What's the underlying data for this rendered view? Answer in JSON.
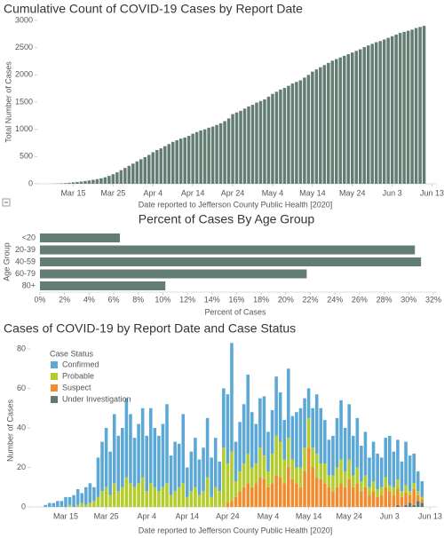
{
  "chart_data": [
    {
      "type": "bar",
      "title": "Cumulative Count of COVID-19 Cases by Report Date",
      "y_label": "Total Number of Cases",
      "x_label": "Date reported to Jefferson County Public Health [2020]",
      "color": "#637d72",
      "categories": [
        "Mar 10",
        "Mar 11",
        "Mar 12",
        "Mar 13",
        "Mar 14",
        "Mar 15",
        "Mar 16",
        "Mar 17",
        "Mar 18",
        "Mar 19",
        "Mar 20",
        "Mar 21",
        "Mar 22",
        "Mar 23",
        "Mar 24",
        "Mar 25",
        "Mar 26",
        "Mar 27",
        "Mar 28",
        "Mar 29",
        "Mar 30",
        "Mar 31",
        "Apr 1",
        "Apr 2",
        "Apr 3",
        "Apr 4",
        "Apr 5",
        "Apr 6",
        "Apr 7",
        "Apr 8",
        "Apr 9",
        "Apr 10",
        "Apr 11",
        "Apr 12",
        "Apr 13",
        "Apr 14",
        "Apr 15",
        "Apr 16",
        "Apr 17",
        "Apr 18",
        "Apr 19",
        "Apr 20",
        "Apr 21",
        "Apr 22",
        "Apr 23",
        "Apr 24",
        "Apr 25",
        "Apr 26",
        "Apr 27",
        "Apr 28",
        "Apr 29",
        "Apr 30",
        "May 1",
        "May 2",
        "May 3",
        "May 4",
        "May 5",
        "May 6",
        "May 7",
        "May 8",
        "May 9",
        "May 10",
        "May 11",
        "May 12",
        "May 13",
        "May 14",
        "May 15",
        "May 16",
        "May 17",
        "May 18",
        "May 19",
        "May 20",
        "May 21",
        "May 22",
        "May 23",
        "May 24",
        "May 25",
        "May 26",
        "May 27",
        "May 28",
        "May 29",
        "May 30",
        "May 31",
        "Jun 1",
        "Jun 2",
        "Jun 3",
        "Jun 4",
        "Jun 5",
        "Jun 6",
        "Jun 7",
        "Jun 8",
        "Jun 9",
        "Jun 10",
        "Jun 11",
        "Jun 12",
        "Jun 13"
      ],
      "values": [
        2,
        4,
        8,
        12,
        18,
        25,
        32,
        40,
        50,
        60,
        72,
        85,
        100,
        120,
        145,
        175,
        210,
        250,
        290,
        330,
        370,
        410,
        450,
        490,
        530,
        580,
        620,
        650,
        690,
        730,
        770,
        800,
        830,
        850,
        880,
        920,
        950,
        980,
        1000,
        1030,
        1050,
        1080,
        1110,
        1150,
        1200,
        1280,
        1310,
        1340,
        1380,
        1420,
        1450,
        1490,
        1520,
        1550,
        1600,
        1650,
        1690,
        1730,
        1760,
        1800,
        1840,
        1870,
        1900,
        1950,
        2000,
        2060,
        2100,
        2140,
        2180,
        2220,
        2260,
        2290,
        2320,
        2350,
        2380,
        2410,
        2440,
        2470,
        2510,
        2540,
        2570,
        2600,
        2620,
        2650,
        2680,
        2710,
        2740,
        2770,
        2790,
        2810,
        2830,
        2860,
        2880,
        2900,
        null,
        null
      ],
      "ylim": [
        0,
        3000
      ],
      "yticks": [
        0,
        500,
        1000,
        1500,
        2000,
        2500,
        3000
      ],
      "xticks": [
        "Mar 15",
        "Mar 25",
        "Apr 4",
        "Apr 14",
        "Apr 24",
        "May 4",
        "May 14",
        "May 24",
        "Jun 3",
        "Jun 13"
      ]
    },
    {
      "type": "bar",
      "orientation": "horizontal",
      "title": "Percent of Cases By Age Group",
      "y_label": "Age Group",
      "x_label": "Percent of Cases",
      "color": "#637d72",
      "categories": [
        "<20",
        "20-39",
        "40-59",
        "60-79",
        "80+"
      ],
      "values": [
        6.5,
        30.5,
        31,
        21.7,
        10.2
      ],
      "xlim": [
        0,
        32.5
      ],
      "xticks": [
        {
          "value": 0,
          "label": "0%"
        },
        {
          "value": 2,
          "label": "2%"
        },
        {
          "value": 4,
          "label": "4%"
        },
        {
          "value": 6,
          "label": "6%"
        },
        {
          "value": 8,
          "label": "8%"
        },
        {
          "value": 10,
          "label": "10%"
        },
        {
          "value": 12,
          "label": "12%"
        },
        {
          "value": 14,
          "label": "14%"
        },
        {
          "value": 16,
          "label": "16%"
        },
        {
          "value": 18,
          "label": "18%"
        },
        {
          "value": 20,
          "label": "20%"
        },
        {
          "value": 22,
          "label": "22%"
        },
        {
          "value": 24,
          "label": "24%"
        },
        {
          "value": 26,
          "label": "26%"
        },
        {
          "value": 28,
          "label": "28%"
        },
        {
          "value": 30,
          "label": "30%"
        },
        {
          "value": 32,
          "label": "32%"
        }
      ]
    },
    {
      "type": "stacked_bar",
      "title": "Cases of COVID-19 by Report Date and Case Status",
      "y_label": "Number of Cases",
      "x_label": "Date reported to Jefferson County Public Health [2020]",
      "legend_title": "Case Status",
      "ylim": [
        0,
        80
      ],
      "yticks": [
        0,
        20,
        40,
        60,
        80
      ],
      "xticks": [
        "Mar 15",
        "Mar 25",
        "Apr 4",
        "Apr 14",
        "Apr 24",
        "May 4",
        "May 14",
        "May 24",
        "Jun 3",
        "Jun 13"
      ],
      "series": [
        {
          "name": "Confirmed",
          "color": "#5ba7d6",
          "values": [
            1,
            2,
            2,
            3,
            3,
            5,
            4,
            6,
            8,
            5,
            9,
            10,
            7,
            20,
            25,
            30,
            22,
            35,
            28,
            30,
            40,
            35,
            25,
            30,
            35,
            28,
            38,
            30,
            28,
            32,
            40,
            20,
            25,
            22,
            35,
            15,
            20,
            25,
            18,
            22,
            30,
            20,
            25,
            15,
            30,
            35,
            55,
            20,
            25,
            30,
            40,
            28,
            20,
            25,
            30,
            20,
            22,
            30,
            25,
            20,
            35,
            22,
            28,
            30,
            25,
            15,
            20,
            30,
            28,
            22,
            18,
            20,
            25,
            30,
            22,
            28,
            20,
            25,
            18,
            22,
            15,
            20,
            18,
            15,
            20,
            25,
            18,
            20,
            15,
            22,
            18,
            15,
            10,
            8,
            null,
            null
          ]
        },
        {
          "name": "Probable",
          "color": "#b3cc2b",
          "values": [
            0,
            0,
            0,
            0,
            0,
            0,
            1,
            0,
            1,
            2,
            1,
            2,
            3,
            5,
            8,
            10,
            6,
            12,
            8,
            10,
            15,
            12,
            10,
            12,
            15,
            8,
            12,
            10,
            8,
            10,
            12,
            6,
            8,
            10,
            12,
            5,
            8,
            10,
            6,
            8,
            15,
            5,
            10,
            8,
            30,
            20,
            25,
            8,
            10,
            12,
            15,
            10,
            10,
            15,
            12,
            8,
            15,
            20,
            18,
            12,
            15,
            10,
            8,
            10,
            12,
            15,
            10,
            12,
            8,
            10,
            6,
            8,
            10,
            12,
            8,
            10,
            6,
            8,
            5,
            6,
            4,
            5,
            4,
            4,
            5,
            3,
            4,
            5,
            3,
            4,
            2,
            3,
            2,
            1,
            null,
            null
          ]
        },
        {
          "name": "Suspect",
          "color": "#f28a2e",
          "values": [
            0,
            0,
            0,
            0,
            0,
            0,
            0,
            0,
            0,
            0,
            0,
            0,
            0,
            0,
            0,
            0,
            0,
            0,
            0,
            0,
            0,
            0,
            0,
            0,
            0,
            0,
            0,
            0,
            0,
            0,
            0,
            0,
            0,
            0,
            0,
            0,
            0,
            0,
            0,
            0,
            0,
            0,
            0,
            0,
            0,
            2,
            3,
            5,
            8,
            10,
            12,
            10,
            12,
            15,
            14,
            10,
            12,
            16,
            15,
            12,
            20,
            14,
            12,
            10,
            18,
            30,
            20,
            15,
            14,
            12,
            10,
            8,
            10,
            12,
            10,
            14,
            10,
            12,
            8,
            10,
            6,
            8,
            5,
            6,
            10,
            8,
            6,
            8,
            5,
            6,
            4,
            8,
            3,
            2,
            null,
            null
          ]
        },
        {
          "name": "Under Investigation",
          "color": "#5e7a6f",
          "values": [
            0,
            0,
            0,
            0,
            0,
            0,
            0,
            0,
            0,
            0,
            0,
            0,
            0,
            0,
            0,
            0,
            0,
            0,
            0,
            0,
            0,
            0,
            0,
            0,
            0,
            0,
            0,
            0,
            0,
            0,
            0,
            0,
            0,
            0,
            0,
            0,
            0,
            0,
            0,
            0,
            0,
            0,
            0,
            0,
            0,
            0,
            0,
            0,
            0,
            0,
            0,
            0,
            0,
            0,
            0,
            0,
            0,
            0,
            0,
            0,
            0,
            0,
            0,
            0,
            0,
            0,
            0,
            0,
            0,
            0,
            0,
            0,
            0,
            0,
            0,
            0,
            0,
            0,
            0,
            0,
            0,
            0,
            0,
            0,
            0,
            0,
            0,
            1,
            0,
            1,
            2,
            1,
            3,
            2,
            null,
            null
          ]
        }
      ]
    }
  ]
}
